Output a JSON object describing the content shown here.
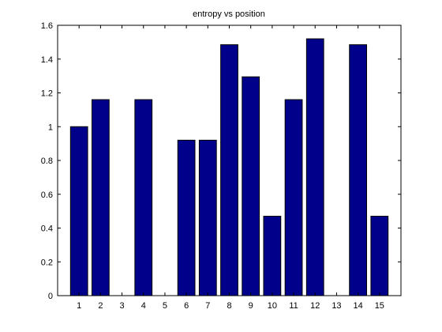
{
  "chart_data": {
    "type": "bar",
    "title": "entropy vs position",
    "xlabel": "",
    "ylabel": "",
    "categories": [
      "1",
      "2",
      "3",
      "4",
      "5",
      "6",
      "7",
      "8",
      "9",
      "10",
      "11",
      "12",
      "13",
      "14",
      "15"
    ],
    "values": [
      1.0,
      1.16,
      0,
      1.16,
      0,
      0.92,
      0.92,
      1.485,
      1.295,
      0.47,
      1.16,
      1.52,
      0,
      1.485,
      0.47
    ],
    "ylim": [
      0,
      1.6
    ],
    "xlim": [
      0,
      16
    ],
    "y_ticks": [
      0,
      0.2,
      0.4,
      0.6,
      0.8,
      1,
      1.2,
      1.4,
      1.6
    ],
    "y_tick_labels": [
      "0",
      "0.2",
      "0.4",
      "0.6",
      "0.8",
      "1",
      "1.2",
      "1.4",
      "1.6"
    ],
    "grid": false,
    "bar_color": "#00008B",
    "edge_color": "#000000"
  }
}
